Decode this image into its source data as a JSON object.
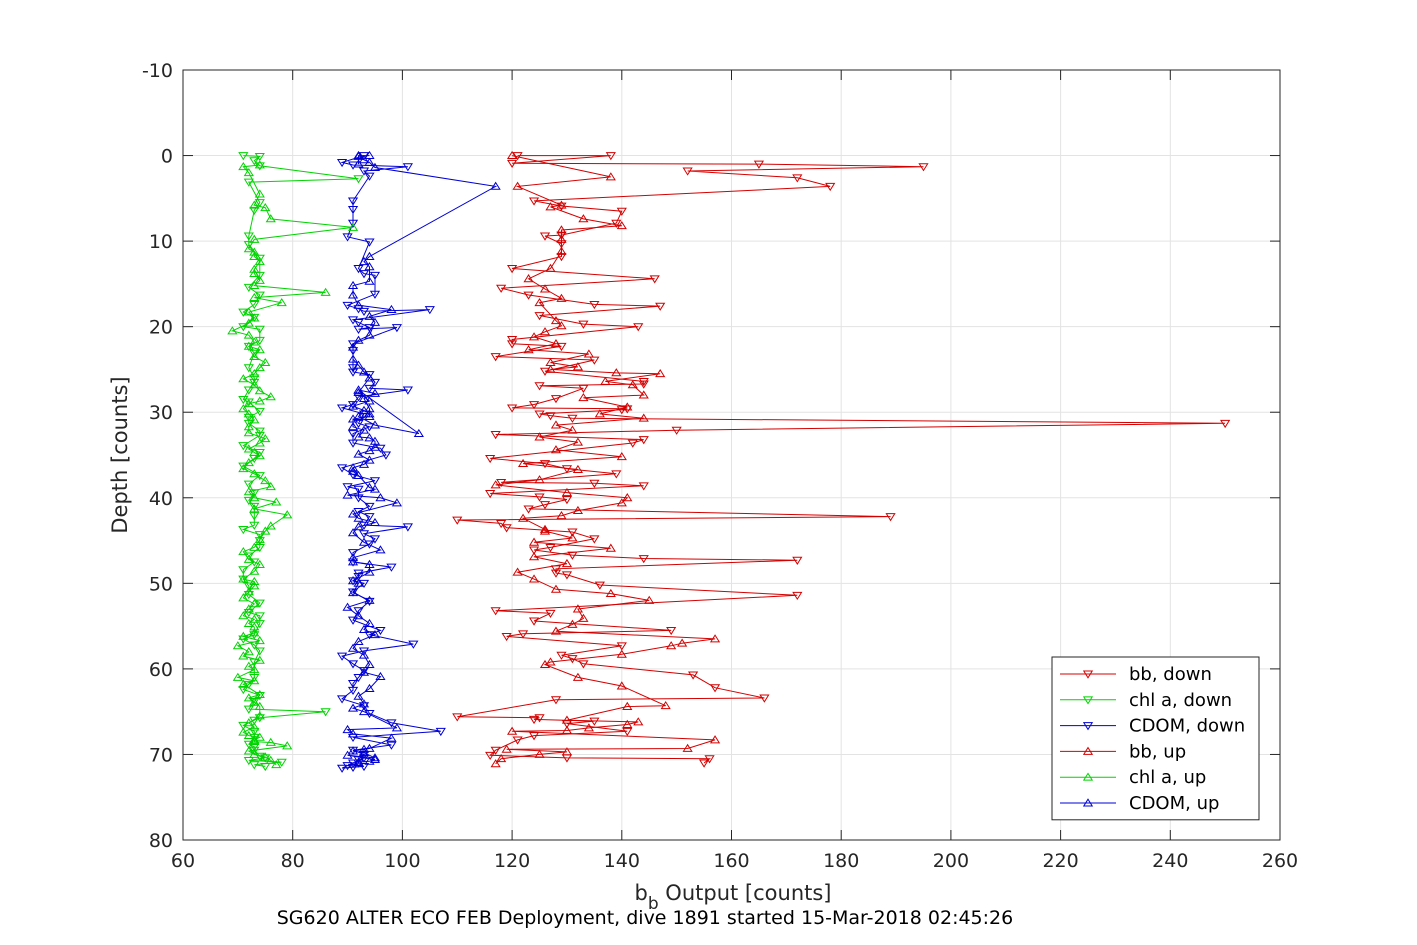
{
  "chart_data": {
    "type": "scatter",
    "title": "",
    "xlabel_main": "b",
    "xlabel_sub": "b",
    "xlabel_rest": " Output [counts]",
    "ylabel": "Depth [counts]",
    "caption": "SG620 ALTER ECO FEB Deployment, dive 1891 started 15-Mar-2018 02:45:26",
    "xlim": [
      60,
      260
    ],
    "ylim": [
      -10,
      80
    ],
    "y_reversed": true,
    "x_ticks": [
      60,
      80,
      100,
      120,
      140,
      160,
      180,
      200,
      220,
      240,
      260
    ],
    "y_ticks": [
      -10,
      0,
      10,
      20,
      30,
      40,
      50,
      60,
      70,
      80
    ],
    "grid": true,
    "legend_position": "bottom-right",
    "colors": {
      "red": "#d40000",
      "green": "#00d400",
      "blue": "#0000d4"
    },
    "series": [
      {
        "name": "bb, down",
        "color": "#d40000",
        "marker": "triangle-down",
        "x": [
          121,
          138,
          120,
          165,
          195,
          152,
          172,
          178,
          124,
          129,
          140,
          139,
          129,
          126,
          129,
          129,
          120,
          146,
          118,
          123,
          135,
          147,
          125,
          133,
          143,
          120,
          120,
          129,
          117,
          135,
          126,
          144,
          144,
          125,
          133,
          128,
          124,
          120,
          141,
          140,
          125,
          127,
          131,
          250,
          150,
          117,
          144,
          142,
          116,
          126,
          130,
          139,
          118,
          135,
          144,
          116,
          125,
          130,
          126,
          123,
          189,
          110,
          118,
          119,
          131,
          135,
          127,
          124,
          131,
          144,
          172,
          128,
          128,
          130,
          136,
          172,
          117,
          127,
          124,
          149,
          122,
          119,
          140,
          129,
          131,
          133,
          153,
          157,
          166,
          128,
          110,
          125,
          124,
          135,
          130,
          141,
          124,
          121,
          117,
          116,
          130,
          156,
          155
        ],
        "y": [
          0.0,
          0.0,
          0.9,
          1.0,
          1.3,
          1.8,
          2.6,
          3.6,
          5.3,
          5.9,
          6.5,
          7.9,
          9.3,
          9.4,
          10.3,
          11.8,
          13.2,
          14.4,
          15.5,
          16.3,
          17.4,
          17.6,
          18.7,
          19.7,
          20.0,
          21.5,
          22.0,
          22.3,
          23.5,
          23.9,
          25.2,
          26.4,
          26.7,
          26.9,
          27.2,
          28.4,
          29.1,
          29.5,
          29.6,
          29.7,
          30.2,
          30.4,
          30.7,
          31.3,
          32.1,
          32.6,
          33.2,
          33.6,
          35.4,
          36.0,
          36.6,
          37.2,
          38.2,
          38.3,
          38.6,
          39.5,
          39.9,
          40.2,
          40.8,
          41.3,
          42.2,
          42.6,
          43.0,
          43.5,
          44.0,
          44.8,
          45.8,
          46.1,
          46.7,
          47.1,
          47.3,
          48.3,
          48.8,
          49.0,
          50.2,
          51.4,
          53.2,
          53.5,
          54.4,
          55.5,
          55.9,
          56.2,
          57.3,
          58.4,
          58.8,
          59.4,
          60.7,
          62.2,
          63.4,
          63.6,
          65.6,
          65.7,
          65.9,
          66.1,
          66.4,
          67.3,
          67.8,
          68.3,
          69.5,
          70.1,
          70.4,
          70.5,
          71.0
        ]
      },
      {
        "name": "chl a, down",
        "color": "#00d400",
        "marker": "triangle-down",
        "x": [
          71,
          74,
          73,
          74,
          92,
          72,
          74,
          73,
          72,
          72,
          74,
          74,
          72,
          74,
          73,
          71,
          73,
          71,
          74,
          74,
          72,
          73,
          72,
          73,
          73,
          72,
          71,
          72,
          74,
          72,
          72,
          74,
          74,
          71,
          74,
          73,
          71,
          74,
          72,
          73,
          72,
          73,
          73,
          73,
          71,
          74,
          74,
          74,
          72,
          73,
          71,
          71,
          72,
          72,
          74,
          72,
          74,
          74,
          73,
          71,
          73,
          74,
          73,
          73,
          72,
          71,
          74,
          73,
          72,
          86,
          74,
          73,
          71,
          73,
          73,
          72,
          73,
          73,
          74,
          75,
          72,
          78,
          73,
          75
        ],
        "y": [
          0.0,
          0.1,
          0.6,
          1.2,
          2.7,
          3.1,
          5.5,
          6.4,
          9.4,
          10.4,
          12.0,
          14.0,
          15.4,
          16.3,
          17.4,
          18.3,
          18.9,
          20.0,
          20.3,
          21.6,
          22.3,
          23.1,
          24.8,
          26.0,
          26.5,
          27.4,
          28.5,
          28.8,
          29.9,
          30.6,
          31.3,
          32.2,
          32.7,
          33.9,
          34.7,
          35.4,
          36.3,
          37.4,
          38.4,
          39.4,
          40.3,
          41.0,
          42.1,
          43.2,
          43.7,
          44.3,
          45.0,
          45.8,
          46.8,
          47.5,
          48.4,
          49.5,
          50.3,
          51.3,
          52.3,
          53.4,
          53.8,
          54.7,
          56.0,
          56.5,
          57.2,
          57.9,
          59.2,
          61.0,
          61.8,
          62.4,
          63.1,
          63.8,
          64.7,
          65.0,
          65.7,
          66.0,
          66.6,
          67.3,
          68.0,
          68.8,
          69.1,
          69.5,
          70.2,
          70.4,
          70.7,
          70.9,
          71.2,
          71.4
        ]
      },
      {
        "name": "CDOM, down",
        "color": "#0000d4",
        "marker": "triangle-down",
        "x": [
          93,
          89,
          91,
          101,
          93,
          94,
          91,
          91,
          91,
          90,
          94,
          92,
          93,
          95,
          95,
          90,
          92,
          93,
          105,
          91,
          92,
          94,
          92,
          99,
          91,
          91,
          91,
          91,
          94,
          95,
          94,
          101,
          92,
          91,
          89,
          93,
          92,
          94,
          91,
          91,
          96,
          97,
          89,
          91,
          95,
          90,
          92,
          92,
          94,
          92,
          94,
          93,
          101,
          93,
          95,
          94,
          91,
          91,
          98,
          92,
          92,
          91,
          93,
          91,
          94,
          92,
          91,
          96,
          94,
          102,
          93,
          89,
          91,
          93,
          92,
          91,
          91,
          89,
          93,
          94,
          98,
          107,
          91,
          98,
          91,
          93,
          92,
          92,
          90,
          93,
          91,
          89,
          93,
          91
        ],
        "y": [
          0.0,
          0.8,
          1.1,
          1.3,
          1.8,
          2.4,
          5.3,
          6.3,
          7.9,
          9.5,
          10.1,
          13.2,
          13.8,
          14.0,
          16.2,
          17.5,
          17.9,
          18.2,
          18.0,
          19.2,
          19.5,
          20.1,
          20.3,
          20.1,
          22.0,
          22.8,
          24.8,
          25.3,
          25.6,
          26.5,
          27.2,
          27.4,
          28.2,
          29.1,
          29.5,
          30.2,
          31.3,
          31.7,
          32.5,
          33.6,
          34.2,
          35.0,
          36.5,
          37.3,
          38.0,
          38.7,
          39.0,
          40.0,
          41.0,
          41.6,
          42.2,
          43.2,
          43.4,
          44.2,
          44.8,
          45.4,
          46.4,
          47.5,
          48.1,
          48.8,
          49.2,
          49.7,
          50.0,
          51.0,
          52.1,
          53.2,
          54.3,
          55.5,
          56.0,
          57.1,
          57.9,
          58.5,
          59.4,
          60.2,
          61.0,
          61.7,
          62.5,
          63.5,
          64.3,
          65.2,
          66.3,
          67.3,
          68.0,
          68.9,
          69.5,
          70.0,
          70.6,
          71.0,
          71.3,
          71.4,
          71.5,
          71.6,
          70.4,
          71.0
        ]
      },
      {
        "name": "bb, up",
        "color": "#d40000",
        "marker": "triangle-up",
        "x": [
          117,
          118,
          125,
          130,
          119,
          152,
          157,
          120,
          130,
          134,
          141,
          143,
          130,
          141,
          148,
          140,
          132,
          126,
          127,
          140,
          149,
          151,
          157,
          128,
          131,
          133,
          132,
          145,
          138,
          128,
          124,
          121,
          130,
          124,
          138,
          124,
          131,
          126,
          126,
          122,
          129,
          132,
          140,
          141,
          130,
          117,
          125,
          132,
          122,
          140,
          128,
          132,
          125,
          131,
          128,
          144,
          136,
          141,
          133,
          144,
          142,
          137,
          147,
          139,
          127,
          132,
          127,
          134,
          123,
          128,
          124,
          126,
          129,
          128,
          125,
          129,
          126,
          123,
          127,
          129,
          129,
          129,
          140,
          133,
          127,
          129,
          121,
          138,
          120
        ],
        "y": [
          71.1,
          70.5,
          70.0,
          69.7,
          69.4,
          69.3,
          68.3,
          67.3,
          67.2,
          66.9,
          66.5,
          66.2,
          66.0,
          64.4,
          64.3,
          62.0,
          61.0,
          59.5,
          59.2,
          58.3,
          57.3,
          57.0,
          56.5,
          55.6,
          54.8,
          54.1,
          53.0,
          52.0,
          51.2,
          50.7,
          49.5,
          48.7,
          47.7,
          46.9,
          45.9,
          45.2,
          44.7,
          43.9,
          43.7,
          42.4,
          42.1,
          41.5,
          40.6,
          40.0,
          39.4,
          38.5,
          37.9,
          36.7,
          36.0,
          35.2,
          34.4,
          33.5,
          32.9,
          32.1,
          31.5,
          30.7,
          30.2,
          29.4,
          28.3,
          28.0,
          26.8,
          26.4,
          25.5,
          25.4,
          25.0,
          24.7,
          24.2,
          23.2,
          22.7,
          22.0,
          21.2,
          20.6,
          19.9,
          19.3,
          17.2,
          16.7,
          15.6,
          14.4,
          13.2,
          11.2,
          9.8,
          8.7,
          8.2,
          7.4,
          6.0,
          5.8,
          3.6,
          2.5,
          0.0
        ]
      },
      {
        "name": "chl a, up",
        "color": "#00d400",
        "marker": "triangle-up",
        "x": [
          77,
          76,
          75,
          73,
          72,
          79,
          76,
          73,
          73,
          74,
          72,
          71,
          73,
          72,
          74,
          74,
          73,
          72,
          74,
          71,
          73,
          70,
          73,
          72,
          74,
          71,
          72,
          70,
          74,
          71,
          73,
          73,
          72,
          73,
          71,
          72,
          73,
          71,
          72,
          73,
          73,
          71,
          73,
          74,
          72,
          71,
          73,
          74,
          75,
          76,
          79,
          73,
          77,
          73,
          72,
          76,
          75,
          73,
          71,
          72,
          74,
          73,
          72,
          74,
          75,
          72,
          72,
          73,
          72,
          71,
          72,
          74,
          76,
          74,
          73,
          71,
          73,
          74,
          75,
          73,
          74,
          72,
          73,
          72,
          69,
          72,
          73,
          72,
          78,
          73,
          86,
          73,
          74,
          73,
          73,
          74,
          73,
          73,
          72,
          73,
          91,
          76,
          75,
          73,
          74,
          72,
          71,
          74
        ],
        "y": [
          71.2,
          70.7,
          70.3,
          70.0,
          69.6,
          69.0,
          68.6,
          68.5,
          68.3,
          68.0,
          67.8,
          67.4,
          66.8,
          66.3,
          65.5,
          64.4,
          63.9,
          63.4,
          63.0,
          61.8,
          61.4,
          61.0,
          60.1,
          59.7,
          59.0,
          58.5,
          58.0,
          57.3,
          56.7,
          56.2,
          55.8,
          55.1,
          54.7,
          54.2,
          53.8,
          53.0,
          52.4,
          51.7,
          51.0,
          50.3,
          49.8,
          49.5,
          48.6,
          47.8,
          47.2,
          46.3,
          45.8,
          44.9,
          43.9,
          43.3,
          42.0,
          41.3,
          40.5,
          40.0,
          39.3,
          38.7,
          38.0,
          37.2,
          36.6,
          35.9,
          35.1,
          34.7,
          34.3,
          33.6,
          33.1,
          32.4,
          31.7,
          30.9,
          30.2,
          29.6,
          29.0,
          28.7,
          28.2,
          27.5,
          26.8,
          26.1,
          25.5,
          24.8,
          24.2,
          23.5,
          22.7,
          22.3,
          21.8,
          21.0,
          20.5,
          19.6,
          19.0,
          18.3,
          17.2,
          16.6,
          16.0,
          15.2,
          14.6,
          13.8,
          13.3,
          12.4,
          11.8,
          11.3,
          10.9,
          9.8,
          8.4,
          7.4,
          6.1,
          5.8,
          4.5,
          2.0,
          1.3,
          1.1
        ]
      },
      {
        "name": "CDOM, up",
        "color": "#0000d4",
        "marker": "triangle-up",
        "x": [
          92,
          92,
          94,
          95,
          90,
          95,
          93,
          91,
          93,
          94,
          98,
          91,
          90,
          99,
          93,
          91,
          93,
          92,
          94,
          96,
          93,
          94,
          93,
          91,
          92,
          95,
          93,
          94,
          92,
          90,
          94,
          91,
          92,
          91,
          94,
          94,
          91,
          91,
          96,
          93,
          91,
          92,
          95,
          92,
          91,
          99,
          96,
          90,
          95,
          94,
          92,
          91,
          91,
          93,
          94,
          92,
          94,
          95,
          95,
          94,
          92,
          93,
          91,
          91,
          94,
          94,
          94,
          93,
          95,
          92,
          103,
          95,
          92,
          93,
          91,
          94,
          92,
          94,
          93,
          92,
          91,
          91,
          92,
          94,
          95,
          94,
          98,
          92,
          91,
          91,
          94,
          94,
          93,
          94,
          117,
          95,
          94,
          93,
          92,
          92,
          92,
          94
        ],
        "y": [
          71.0,
          70.9,
          70.8,
          70.6,
          70.1,
          70.4,
          69.8,
          69.6,
          69.4,
          69.3,
          68.1,
          67.6,
          67.1,
          66.9,
          65.0,
          64.6,
          64.1,
          63.2,
          62.3,
          60.9,
          60.4,
          59.5,
          58.4,
          57.6,
          56.8,
          56.0,
          55.4,
          54.7,
          53.8,
          52.8,
          52.0,
          51.1,
          50.0,
          49.7,
          48.7,
          47.8,
          47.5,
          47.0,
          46.1,
          45.2,
          44.1,
          43.4,
          42.9,
          42.4,
          41.9,
          40.6,
          40.0,
          39.7,
          39.0,
          38.8,
          37.4,
          36.9,
          36.5,
          36.1,
          35.6,
          34.9,
          34.5,
          34.1,
          33.4,
          33.0,
          32.9,
          32.1,
          31.7,
          30.8,
          30.5,
          30.2,
          29.6,
          28.4,
          27.8,
          27.4,
          32.5,
          31.5,
          30.5,
          29.8,
          29.3,
          28.7,
          27.7,
          26.0,
          25.3,
          24.5,
          23.8,
          22.4,
          21.6,
          21.0,
          19.5,
          18.8,
          18.0,
          17.5,
          16.3,
          15.2,
          14.7,
          13.0,
          12.4,
          11.8,
          3.6,
          1.4,
          0.8,
          0.5,
          0.1,
          1.0,
          0.0,
          0.0
        ]
      }
    ]
  }
}
